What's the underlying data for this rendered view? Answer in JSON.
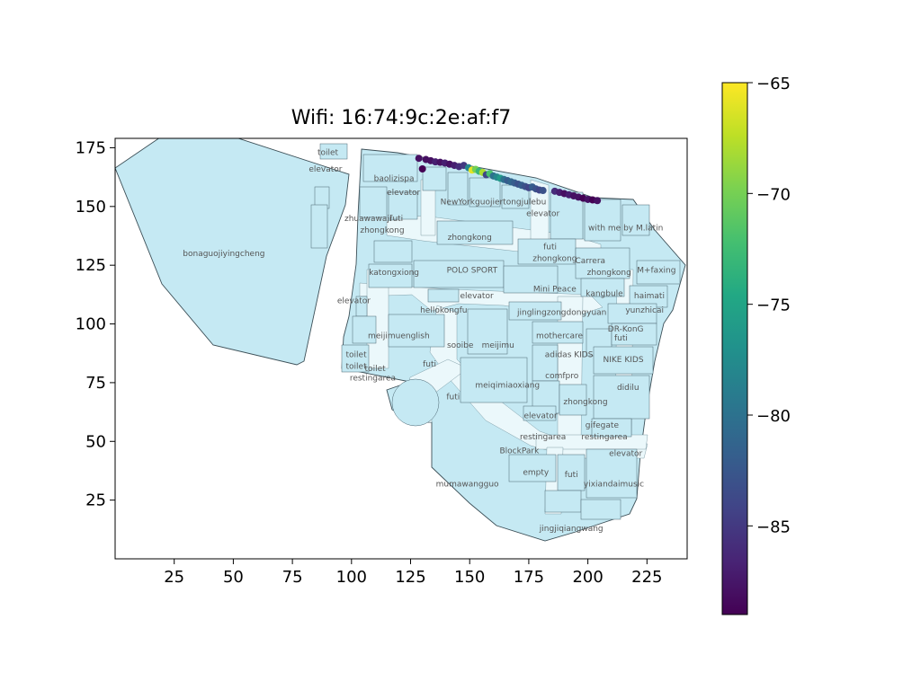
{
  "chart_data": {
    "type": "scatter",
    "title": "Wifi: 16:74:9c:2e:af:f7",
    "xlim": [
      0,
      242
    ],
    "ylim": [
      0,
      179
    ],
    "x_ticks": [
      25,
      50,
      75,
      100,
      125,
      150,
      175,
      200,
      225
    ],
    "y_ticks": [
      25,
      50,
      75,
      100,
      125,
      150,
      175
    ],
    "colorbar": {
      "colormap": "viridis",
      "min": -89,
      "max": -65,
      "ticks": [
        -65,
        -70,
        -75,
        -80,
        -85
      ]
    },
    "background_color": "#c5e9f3",
    "points": [
      {
        "x": 128.5,
        "y": 170.5,
        "v": -88
      },
      {
        "x": 130.0,
        "y": 166.0,
        "v": -89
      },
      {
        "x": 131.5,
        "y": 170.0,
        "v": -88
      },
      {
        "x": 133.5,
        "y": 169.5,
        "v": -88
      },
      {
        "x": 135.5,
        "y": 169.0,
        "v": -87
      },
      {
        "x": 137.5,
        "y": 168.8,
        "v": -88
      },
      {
        "x": 139.5,
        "y": 168.5,
        "v": -87
      },
      {
        "x": 141.5,
        "y": 168.0,
        "v": -88
      },
      {
        "x": 143.5,
        "y": 167.5,
        "v": -87
      },
      {
        "x": 145.5,
        "y": 167.0,
        "v": -86
      },
      {
        "x": 147.5,
        "y": 167.5,
        "v": -85
      },
      {
        "x": 149.5,
        "y": 166.5,
        "v": -78
      },
      {
        "x": 151.0,
        "y": 165.5,
        "v": -66
      },
      {
        "x": 152.5,
        "y": 165.8,
        "v": -70
      },
      {
        "x": 154.0,
        "y": 165.0,
        "v": -73
      },
      {
        "x": 155.5,
        "y": 164.5,
        "v": -68
      },
      {
        "x": 157.0,
        "y": 163.5,
        "v": -84
      },
      {
        "x": 158.5,
        "y": 164.0,
        "v": -72
      },
      {
        "x": 160.0,
        "y": 163.0,
        "v": -80
      },
      {
        "x": 161.5,
        "y": 162.5,
        "v": -78
      },
      {
        "x": 163.0,
        "y": 162.0,
        "v": -76
      },
      {
        "x": 164.5,
        "y": 161.5,
        "v": -80
      },
      {
        "x": 166.0,
        "y": 161.0,
        "v": -82
      },
      {
        "x": 167.5,
        "y": 160.5,
        "v": -81
      },
      {
        "x": 169.0,
        "y": 160.0,
        "v": -82
      },
      {
        "x": 170.5,
        "y": 159.5,
        "v": -83
      },
      {
        "x": 172.0,
        "y": 159.0,
        "v": -82
      },
      {
        "x": 173.5,
        "y": 158.5,
        "v": -83
      },
      {
        "x": 175.0,
        "y": 158.0,
        "v": -84
      },
      {
        "x": 176.5,
        "y": 158.3,
        "v": -82
      },
      {
        "x": 178.0,
        "y": 157.5,
        "v": -83
      },
      {
        "x": 179.5,
        "y": 157.0,
        "v": -84
      },
      {
        "x": 181.0,
        "y": 156.8,
        "v": -83
      },
      {
        "x": 186.0,
        "y": 156.5,
        "v": -86
      },
      {
        "x": 188.0,
        "y": 156.0,
        "v": -87
      },
      {
        "x": 190.0,
        "y": 155.5,
        "v": -88
      },
      {
        "x": 192.0,
        "y": 155.0,
        "v": -87
      },
      {
        "x": 194.0,
        "y": 154.5,
        "v": -88
      },
      {
        "x": 196.0,
        "y": 154.0,
        "v": -88
      },
      {
        "x": 198.0,
        "y": 153.5,
        "v": -89
      },
      {
        "x": 200.0,
        "y": 153.0,
        "v": -88
      },
      {
        "x": 202.0,
        "y": 152.8,
        "v": -89
      },
      {
        "x": 204.0,
        "y": 152.5,
        "v": -88
      }
    ],
    "store_labels": [
      {
        "text": "toilet",
        "x": 90,
        "y": 173
      },
      {
        "text": "elevator",
        "x": 89,
        "y": 166
      },
      {
        "text": "bonaguojiyingcheng",
        "x": 46,
        "y": 130
      },
      {
        "text": "baolizispa",
        "x": 118,
        "y": 162
      },
      {
        "text": "elevator",
        "x": 122,
        "y": 156
      },
      {
        "text": "NewYorkguojiertongjulebu",
        "x": 160,
        "y": 152
      },
      {
        "text": "elevator",
        "x": 181,
        "y": 147
      },
      {
        "text": "zhuawawaji",
        "x": 107,
        "y": 145
      },
      {
        "text": "futi",
        "x": 119,
        "y": 145
      },
      {
        "text": "zhongkong",
        "x": 113,
        "y": 140
      },
      {
        "text": "zhongkong",
        "x": 150,
        "y": 137
      },
      {
        "text": "with me by M.latin",
        "x": 216,
        "y": 141
      },
      {
        "text": "futi",
        "x": 184,
        "y": 133
      },
      {
        "text": "zhongkong",
        "x": 186,
        "y": 128
      },
      {
        "text": "Carrera",
        "x": 201,
        "y": 127
      },
      {
        "text": "zhongkong",
        "x": 209,
        "y": 122
      },
      {
        "text": "M+faxing",
        "x": 229,
        "y": 123
      },
      {
        "text": "katongxiong",
        "x": 118,
        "y": 122
      },
      {
        "text": "POLO SPORT",
        "x": 151,
        "y": 123
      },
      {
        "text": "Mini Peace",
        "x": 186,
        "y": 115
      },
      {
        "text": "kangbule",
        "x": 207,
        "y": 113
      },
      {
        "text": "haimati",
        "x": 226,
        "y": 112
      },
      {
        "text": "elevator",
        "x": 101,
        "y": 110
      },
      {
        "text": "elevator",
        "x": 153,
        "y": 112
      },
      {
        "text": "hellokongfu",
        "x": 139,
        "y": 106
      },
      {
        "text": "jinglingzongdongyuan",
        "x": 189,
        "y": 105
      },
      {
        "text": "yunzhicai",
        "x": 224,
        "y": 106
      },
      {
        "text": "DR-KonG",
        "x": 216,
        "y": 98
      },
      {
        "text": "meijimuenglish",
        "x": 120,
        "y": 95
      },
      {
        "text": "mothercare",
        "x": 188,
        "y": 95
      },
      {
        "text": "futi",
        "x": 214,
        "y": 94
      },
      {
        "text": "sooibe",
        "x": 146,
        "y": 91
      },
      {
        "text": "meijimu",
        "x": 162,
        "y": 91
      },
      {
        "text": "toilet",
        "x": 102,
        "y": 87
      },
      {
        "text": "adidas KIDS",
        "x": 192,
        "y": 87
      },
      {
        "text": "NIKE KIDS",
        "x": 215,
        "y": 85
      },
      {
        "text": "toilet",
        "x": 102,
        "y": 82
      },
      {
        "text": "toilet",
        "x": 110,
        "y": 81
      },
      {
        "text": "futi",
        "x": 133,
        "y": 83
      },
      {
        "text": "restingarea",
        "x": 109,
        "y": 77
      },
      {
        "text": "comfpro",
        "x": 189,
        "y": 78
      },
      {
        "text": "meiqimiaoxiang",
        "x": 166,
        "y": 74
      },
      {
        "text": "didilu",
        "x": 217,
        "y": 73
      },
      {
        "text": "futi",
        "x": 143,
        "y": 69
      },
      {
        "text": "zhongkong",
        "x": 199,
        "y": 67
      },
      {
        "text": "elevator",
        "x": 180,
        "y": 61
      },
      {
        "text": "gifegate",
        "x": 206,
        "y": 57
      },
      {
        "text": "restingarea",
        "x": 181,
        "y": 52
      },
      {
        "text": "restingarea",
        "x": 207,
        "y": 52
      },
      {
        "text": "BlockPark",
        "x": 171,
        "y": 46
      },
      {
        "text": "elevator",
        "x": 216,
        "y": 45
      },
      {
        "text": "empty",
        "x": 178,
        "y": 37
      },
      {
        "text": "futi",
        "x": 193,
        "y": 36
      },
      {
        "text": "mumawangguo",
        "x": 149,
        "y": 32
      },
      {
        "text": "yixiandaimusic",
        "x": 211,
        "y": 32
      },
      {
        "text": "jingjiqiangwang",
        "x": 193,
        "y": 13
      }
    ]
  }
}
